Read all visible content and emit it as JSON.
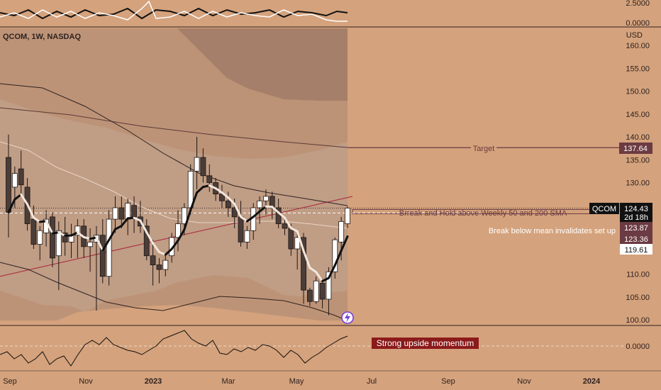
{
  "header": {
    "symbol_title": "QCOM, 1W, NASDAQ",
    "currency": "USD"
  },
  "chart_data": {
    "type": "candlestick",
    "symbol": "QCOM",
    "timeframe": "1W",
    "exchange": "NASDAQ",
    "price_axis_labels": [
      "160.00",
      "155.00",
      "150.00",
      "145.00",
      "140.00",
      "135.00",
      "130.00",
      "125.00",
      "120.00",
      "115.00",
      "110.00",
      "105.00",
      "100.00"
    ],
    "price_axis_values": [
      160,
      155,
      150,
      145,
      140,
      135,
      130,
      125,
      120,
      115,
      110,
      105,
      100
    ],
    "x_axis_labels": [
      "Sep",
      "Nov",
      "2023",
      "Mar",
      "May",
      "Jul",
      "Sep",
      "Nov",
      "2024"
    ],
    "candles": [
      {
        "o": 135.5,
        "h": 140.5,
        "l": 118.0,
        "c": 123.5
      },
      {
        "o": 129.0,
        "h": 133.5,
        "l": 124.5,
        "c": 132.0
      },
      {
        "o": 133.0,
        "h": 137.0,
        "l": 127.5,
        "c": 129.5
      },
      {
        "o": 129.0,
        "h": 131.0,
        "l": 119.5,
        "c": 121.0
      },
      {
        "o": 122.0,
        "h": 125.0,
        "l": 115.5,
        "c": 116.5
      },
      {
        "o": 116.5,
        "h": 120.5,
        "l": 113.0,
        "c": 119.5
      },
      {
        "o": 119.0,
        "h": 124.0,
        "l": 116.0,
        "c": 122.0
      },
      {
        "o": 122.5,
        "h": 123.5,
        "l": 111.5,
        "c": 113.5
      },
      {
        "o": 114.0,
        "h": 121.5,
        "l": 106.5,
        "c": 119.5
      },
      {
        "o": 119.0,
        "h": 122.5,
        "l": 114.0,
        "c": 117.0
      },
      {
        "o": 117.0,
        "h": 121.0,
        "l": 113.5,
        "c": 118.5
      },
      {
        "o": 118.5,
        "h": 122.0,
        "l": 113.5,
        "c": 120.5
      },
      {
        "o": 120.5,
        "h": 122.0,
        "l": 113.5,
        "c": 116.0
      },
      {
        "o": 116.0,
        "h": 120.0,
        "l": 110.5,
        "c": 117.0
      },
      {
        "o": 117.0,
        "h": 120.5,
        "l": 102.0,
        "c": 118.5
      },
      {
        "o": 118.5,
        "h": 122.0,
        "l": 108.0,
        "c": 109.5
      },
      {
        "o": 109.5,
        "h": 124.0,
        "l": 107.5,
        "c": 122.0
      },
      {
        "o": 122.0,
        "h": 127.0,
        "l": 119.0,
        "c": 124.5
      },
      {
        "o": 124.5,
        "h": 127.0,
        "l": 120.0,
        "c": 122.0
      },
      {
        "o": 122.0,
        "h": 126.5,
        "l": 118.5,
        "c": 125.5
      },
      {
        "o": 125.0,
        "h": 127.0,
        "l": 119.0,
        "c": 122.5
      },
      {
        "o": 122.5,
        "h": 126.0,
        "l": 119.0,
        "c": 120.5
      },
      {
        "o": 120.5,
        "h": 122.0,
        "l": 113.0,
        "c": 114.0
      },
      {
        "o": 114.0,
        "h": 117.5,
        "l": 107.5,
        "c": 112.0
      },
      {
        "o": 112.0,
        "h": 113.5,
        "l": 108.0,
        "c": 111.0
      },
      {
        "o": 111.0,
        "h": 114.5,
        "l": 109.5,
        "c": 113.0
      },
      {
        "o": 114.0,
        "h": 119.0,
        "l": 112.5,
        "c": 118.0
      },
      {
        "o": 118.0,
        "h": 124.0,
        "l": 115.0,
        "c": 121.0
      },
      {
        "o": 121.0,
        "h": 125.5,
        "l": 118.5,
        "c": 124.5
      },
      {
        "o": 124.5,
        "h": 134.0,
        "l": 123.0,
        "c": 132.5
      },
      {
        "o": 132.5,
        "h": 140.0,
        "l": 128.5,
        "c": 135.5
      },
      {
        "o": 135.5,
        "h": 137.5,
        "l": 130.0,
        "c": 131.5
      },
      {
        "o": 131.5,
        "h": 134.0,
        "l": 128.0,
        "c": 130.0
      },
      {
        "o": 130.0,
        "h": 131.0,
        "l": 126.0,
        "c": 127.5
      },
      {
        "o": 127.5,
        "h": 129.5,
        "l": 124.5,
        "c": 126.0
      },
      {
        "o": 126.0,
        "h": 128.0,
        "l": 122.5,
        "c": 124.5
      },
      {
        "o": 124.5,
        "h": 126.5,
        "l": 120.0,
        "c": 122.5
      },
      {
        "o": 122.5,
        "h": 126.0,
        "l": 116.0,
        "c": 117.0
      },
      {
        "o": 117.0,
        "h": 120.5,
        "l": 115.5,
        "c": 119.5
      },
      {
        "o": 119.5,
        "h": 125.5,
        "l": 117.5,
        "c": 124.5
      },
      {
        "o": 124.5,
        "h": 127.0,
        "l": 121.0,
        "c": 126.0
      },
      {
        "o": 126.0,
        "h": 128.5,
        "l": 123.0,
        "c": 127.0
      },
      {
        "o": 127.0,
        "h": 128.0,
        "l": 122.0,
        "c": 124.5
      },
      {
        "o": 124.5,
        "h": 126.5,
        "l": 120.0,
        "c": 121.0
      },
      {
        "o": 121.0,
        "h": 122.5,
        "l": 118.5,
        "c": 120.0
      },
      {
        "o": 120.0,
        "h": 121.0,
        "l": 114.0,
        "c": 115.5
      },
      {
        "o": 115.5,
        "h": 119.5,
        "l": 111.0,
        "c": 118.0
      },
      {
        "o": 118.0,
        "h": 119.0,
        "l": 103.5,
        "c": 106.5
      },
      {
        "o": 106.5,
        "h": 107.0,
        "l": 103.0,
        "c": 104.0
      },
      {
        "o": 104.0,
        "h": 109.5,
        "l": 103.5,
        "c": 108.5
      },
      {
        "o": 108.0,
        "h": 109.0,
        "l": 102.5,
        "c": 104.5
      },
      {
        "o": 104.5,
        "h": 111.5,
        "l": 101.0,
        "c": 110.5
      },
      {
        "o": 110.5,
        "h": 118.0,
        "l": 109.0,
        "c": 117.5
      },
      {
        "o": 117.0,
        "h": 122.5,
        "l": 113.0,
        "c": 121.5
      },
      {
        "o": 121.0,
        "h": 124.8,
        "l": 120.0,
        "c": 124.43
      }
    ],
    "levels": {
      "target": 137.64,
      "last_price": 124.43,
      "sma_line": 123.87,
      "mean": 123.36,
      "ema_last": 119.61
    },
    "price_labels": {
      "target": "137.64",
      "last_price": "124.43",
      "countdown": "2d 18h",
      "sma_line": "123.87",
      "mean": "123.36",
      "ema_last": "119.61",
      "symbol": "QCOM"
    },
    "annotations": {
      "target": "Target",
      "break_hold": "Brreak and Hold above Weekly 50 and 200 SMA",
      "break_below": "Break below mean invalidates set up",
      "momentum": "Strong upside momentum"
    },
    "top_indicator": {
      "labels": [
        "2.5000",
        "0.0000"
      ]
    },
    "bottom_indicator": {
      "labels": [
        "0.0000"
      ]
    },
    "colors": {
      "background": "#d4a27c",
      "up": "#ffffff",
      "down": "#4b3d38",
      "target": "#6b3a42",
      "momentum_bg": "#8b1a1a"
    }
  }
}
